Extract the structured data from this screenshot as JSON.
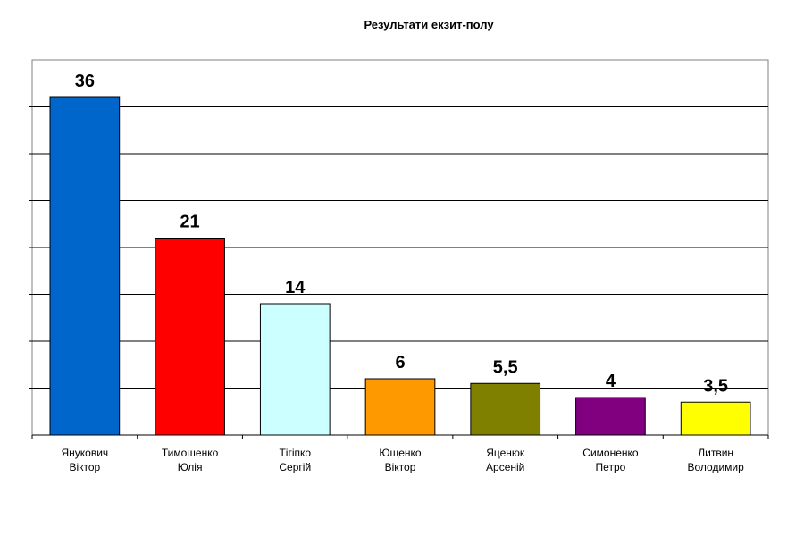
{
  "chart_data": {
    "type": "bar",
    "title": "Результати екзит-полу",
    "categories": [
      [
        "Янукович",
        "Віктор"
      ],
      [
        "Тимошенко",
        "Юлія"
      ],
      [
        "Тігіпко",
        "Сергій"
      ],
      [
        "Ющенко",
        "Віктор"
      ],
      [
        "Яценюк",
        "Арсеній"
      ],
      [
        "Симоненко",
        "Петро"
      ],
      [
        "Литвин",
        "Володимир"
      ]
    ],
    "values": [
      36,
      21,
      14,
      6,
      5.5,
      4,
      3.5
    ],
    "value_labels": [
      "36",
      "21",
      "14",
      "6",
      "5,5",
      "4",
      "3,5"
    ],
    "colors": [
      "#0066cc",
      "#ff0000",
      "#ccffff",
      "#ff9900",
      "#808000",
      "#800080",
      "#ffff00"
    ],
    "ylim": [
      0,
      40
    ],
    "y_gridline_step": 5,
    "grid": true,
    "legend": "none"
  }
}
